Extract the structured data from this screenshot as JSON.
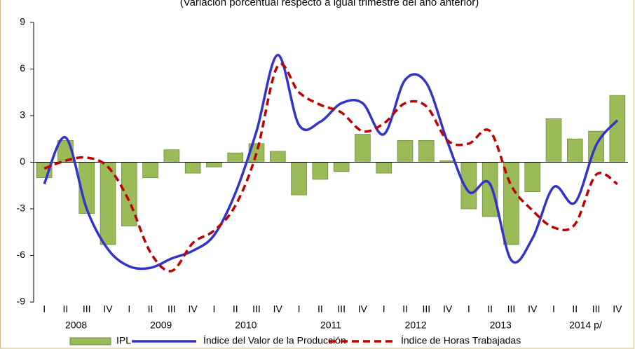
{
  "chart_data": {
    "type": "bar-line",
    "subtitle": "(Variación porcentual respecto a igual trimestre del año anterior)",
    "categories": [
      "I",
      "II",
      "III",
      "IV",
      "I",
      "II",
      "III",
      "IV",
      "I",
      "II",
      "III",
      "IV",
      "I",
      "II",
      "III",
      "IV",
      "I",
      "II",
      "III",
      "IV",
      "I",
      "II",
      "III",
      "IV",
      "I",
      "II",
      "III",
      "IV"
    ],
    "years": [
      "2008",
      "2009",
      "2010",
      "2011",
      "2012",
      "2013",
      "2014 p/"
    ],
    "series": [
      {
        "name": "IPL",
        "kind": "bar",
        "color": "#9bbb59",
        "values": [
          -1.0,
          1.4,
          -3.3,
          -5.3,
          -4.1,
          -1.0,
          0.8,
          -0.7,
          -0.3,
          0.6,
          1.2,
          0.7,
          -2.1,
          -1.1,
          -0.6,
          1.8,
          -0.7,
          1.4,
          1.4,
          0.1,
          -3.0,
          -3.5,
          -5.3,
          -1.9,
          2.8,
          1.5,
          2.0,
          4.3
        ]
      },
      {
        "name": "Índice del Valor de la Producción",
        "kind": "line",
        "color": "#3333cc",
        "values": [
          -1.4,
          1.6,
          -3.0,
          -5.6,
          -6.7,
          -6.8,
          -6.2,
          -5.7,
          -4.7,
          -2.0,
          2.0,
          6.9,
          2.4,
          2.6,
          3.8,
          3.8,
          1.8,
          5.3,
          5.1,
          1.3,
          -1.9,
          -1.4,
          -6.3,
          -4.9,
          -1.6,
          -2.6,
          1.1,
          2.7
        ]
      },
      {
        "name": "Índice de Horas Trabajadas",
        "kind": "dashed-line",
        "color": "#c00000",
        "values": [
          -0.4,
          0.1,
          0.3,
          -0.3,
          -2.5,
          -5.8,
          -7.0,
          -5.2,
          -4.4,
          -2.8,
          0.6,
          6.2,
          4.5,
          3.7,
          3.2,
          2.0,
          2.5,
          3.8,
          3.6,
          1.4,
          1.2,
          2.0,
          -1.5,
          -3.1,
          -4.2,
          -4.0,
          -0.8,
          -1.4
        ]
      }
    ],
    "ylim": [
      -9,
      9
    ],
    "yticks": [
      -9,
      -6,
      -3,
      0,
      3,
      6,
      9
    ]
  }
}
